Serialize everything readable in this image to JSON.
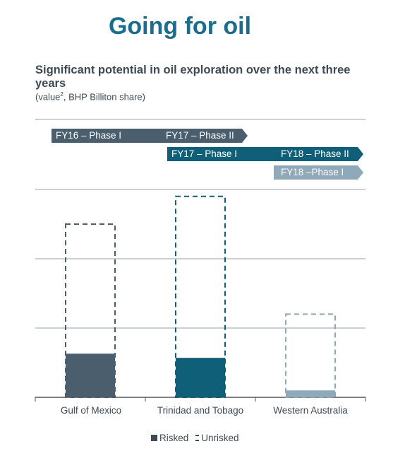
{
  "title": "Going for oil",
  "subtitle": "Significant potential in oil exploration over the next three years",
  "note_prefix": "(value",
  "note_sup": "2",
  "note_suffix": ", BHP Billiton share)",
  "phases": [
    {
      "left_label": "FY16 – Phase I",
      "right_label": "FY17 – Phase II",
      "color": "#4a5e6e"
    },
    {
      "left_label": "FY17 – Phase I",
      "right_label": "FY18 – Phase II",
      "color": "#0f5f78"
    },
    {
      "left_label": "FY18 –Phase I",
      "right_label": "",
      "color": "#8fa9b8"
    }
  ],
  "legend": {
    "risked": "Risked",
    "unrisked": "Unrisked"
  },
  "chart_data": {
    "type": "bar",
    "categories": [
      "Gulf of Mexico",
      "Trinidad and Tobago",
      "Western Australia"
    ],
    "series": [
      {
        "name": "Risked",
        "values": [
          0.63,
          0.57,
          0.1
        ]
      },
      {
        "name": "Unrisked",
        "values": [
          2.5,
          2.9,
          1.2
        ]
      }
    ],
    "colors": [
      "#4a5e6e",
      "#0f5f78",
      "#8fa9b8"
    ],
    "ylim": [
      0,
      3
    ],
    "grid": true
  }
}
